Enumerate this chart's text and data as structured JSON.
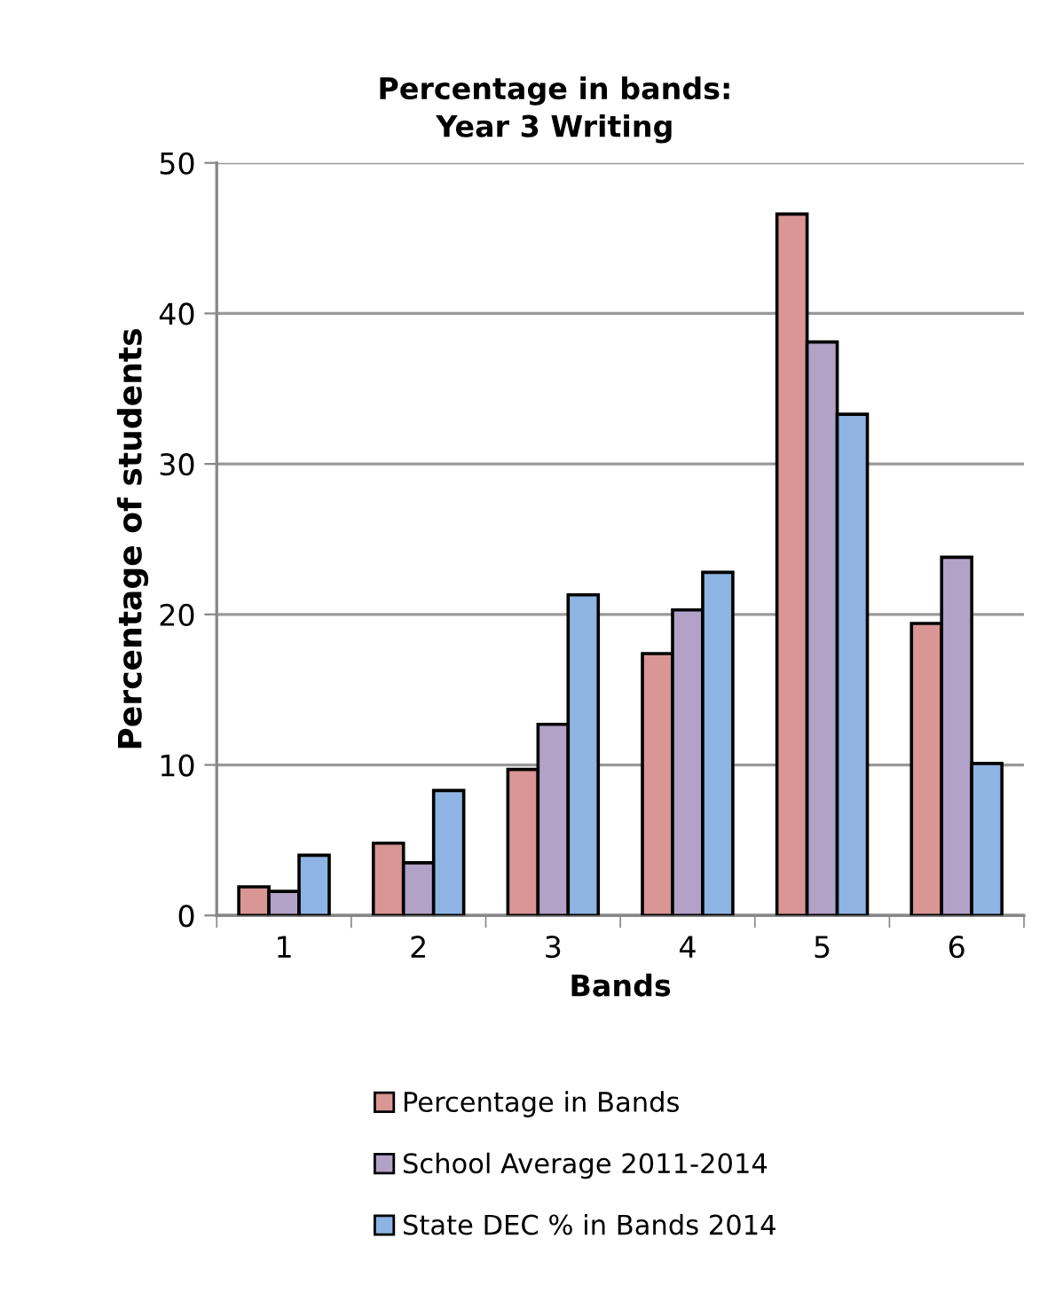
{
  "chart_data": {
    "type": "bar",
    "title": "Percentage in bands:\nYear 3 Writing",
    "xlabel": "Bands",
    "ylabel": "Percentage of students",
    "categories": [
      "1",
      "2",
      "3",
      "4",
      "5",
      "6"
    ],
    "series": [
      {
        "name": "Percentage in Bands",
        "color": "#d99694",
        "values": [
          1.9,
          4.8,
          9.7,
          17.4,
          46.6,
          19.4
        ]
      },
      {
        "name": "School Average 2011-2014",
        "color": "#b3a2c7",
        "values": [
          1.6,
          3.5,
          12.7,
          20.3,
          38.1,
          23.8
        ]
      },
      {
        "name": "State DEC % in Bands 2014",
        "color": "#8eb4e3",
        "values": [
          4.0,
          8.3,
          21.3,
          22.8,
          33.3,
          10.1
        ]
      }
    ],
    "ylim": [
      0,
      50
    ],
    "yticks": [
      0,
      10,
      20,
      30,
      40,
      50
    ],
    "grid": "y",
    "legend": "bottom"
  }
}
